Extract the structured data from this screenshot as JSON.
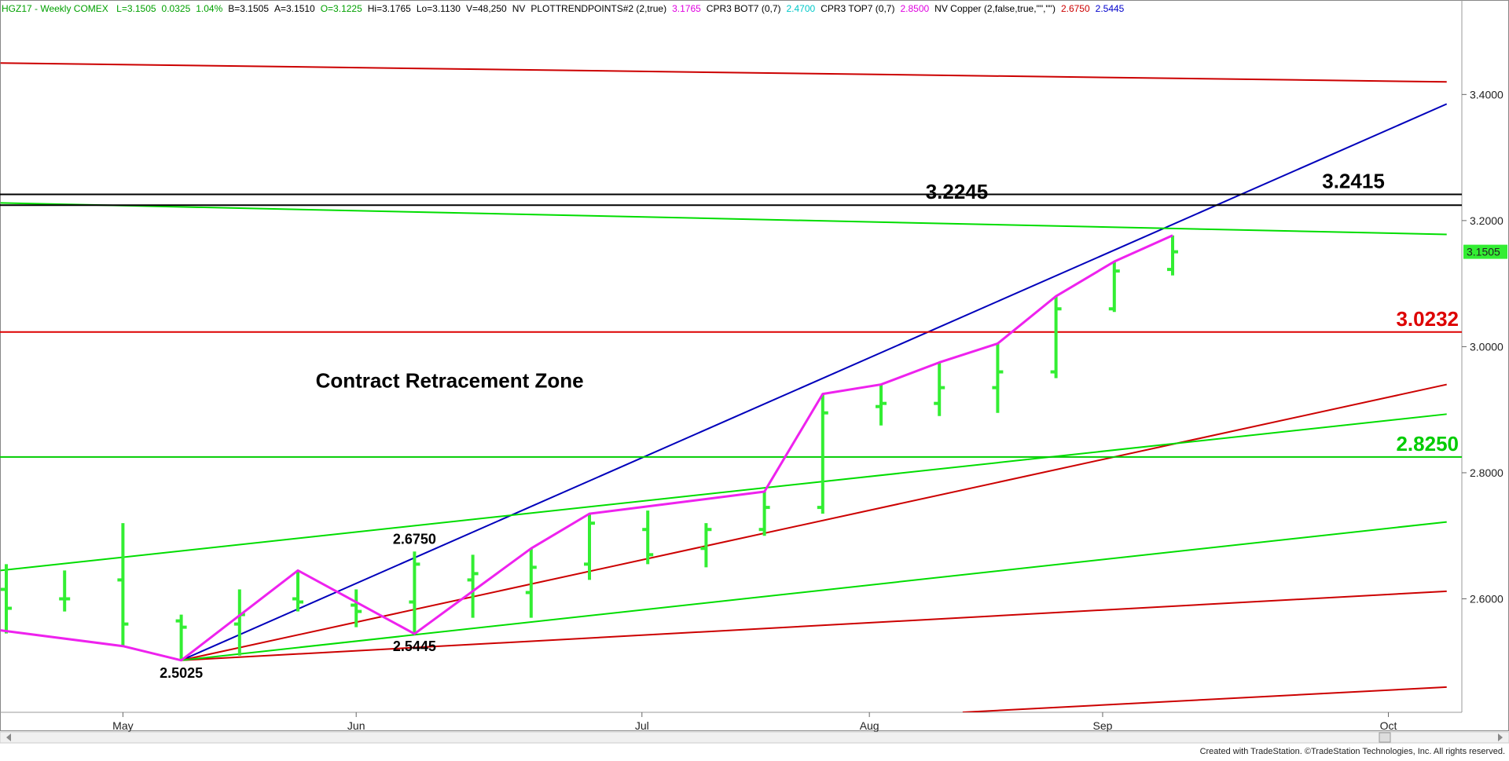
{
  "header": {
    "symbol_text": "HGZ17 - Weekly  COMEX",
    "fields": [
      {
        "text": "L=3.1505",
        "color": "#00a000"
      },
      {
        "text": "0.0325",
        "color": "#00a000"
      },
      {
        "text": "1.04%",
        "color": "#00a000"
      },
      {
        "text": "B=3.1505",
        "color": "#000000"
      },
      {
        "text": "A=3.1510",
        "color": "#000000"
      },
      {
        "text": "O=3.1225",
        "color": "#00a000"
      },
      {
        "text": "Hi=3.1765",
        "color": "#000000"
      },
      {
        "text": "Lo=3.1130",
        "color": "#000000"
      },
      {
        "text": "V=48,250",
        "color": "#000000"
      },
      {
        "text": "NV",
        "color": "#000000"
      },
      {
        "text": "PLOTTRENDPOINTS#2 (2,true)",
        "color": "#000000"
      },
      {
        "text": "3.1765",
        "color": "#e000e0"
      },
      {
        "text": "CPR3 BOT7 (0,7)",
        "color": "#000000"
      },
      {
        "text": "2.4700",
        "color": "#00c8c8"
      },
      {
        "text": "CPR3 TOP7 (0,7)",
        "color": "#000000"
      },
      {
        "text": "2.8500",
        "color": "#e000e0"
      },
      {
        "text": "NV Copper (2,false,true,\"\",\"\")",
        "color": "#000000"
      },
      {
        "text": "2.6750",
        "color": "#cc0000"
      },
      {
        "text": "2.5445",
        "color": "#0000cc"
      }
    ]
  },
  "footer": {
    "credit": "Created with TradeStation. ©TradeStation Technologies, Inc. All rights reserved."
  },
  "colors": {
    "bars": "#33ee33",
    "trend_points": "#ee22ee",
    "blue_line": "#0000bb",
    "red_line": "#cc0000",
    "green_line": "#00dd00",
    "black_line": "#000000",
    "last_price_bg": "#33ee33"
  },
  "chart_data": {
    "type": "bar",
    "subtype": "ohlc",
    "ylim": [
      2.42,
      3.52
    ],
    "yticks": [
      "3.4000",
      "3.2000",
      "3.0000",
      "2.8000",
      "2.6000"
    ],
    "ytick_values": [
      3.4,
      3.2,
      3.0,
      2.8,
      2.6
    ],
    "x_month_labels": [
      {
        "label": "May",
        "x": 2.0
      },
      {
        "label": "Jun",
        "x": 6.0
      },
      {
        "label": "Jul",
        "x": 10.9
      },
      {
        "label": "Aug",
        "x": 14.8
      },
      {
        "label": "Sep",
        "x": 18.8
      },
      {
        "label": "Oct",
        "x": 23.7
      }
    ],
    "x_range": [
      0,
      24.7
    ],
    "bars": [
      {
        "x": 0,
        "open": 2.615,
        "high": 2.655,
        "low": 2.545,
        "close": 2.585
      },
      {
        "x": 1,
        "open": 2.6,
        "high": 2.645,
        "low": 2.58,
        "close": 2.6
      },
      {
        "x": 2,
        "open": 2.63,
        "high": 2.72,
        "low": 2.525,
        "close": 2.56
      },
      {
        "x": 3,
        "open": 2.565,
        "high": 2.575,
        "low": 2.5025,
        "close": 2.555
      },
      {
        "x": 4,
        "open": 2.56,
        "high": 2.615,
        "low": 2.51,
        "close": 2.575
      },
      {
        "x": 5,
        "open": 2.6,
        "high": 2.645,
        "low": 2.58,
        "close": 2.595
      },
      {
        "x": 6,
        "open": 2.59,
        "high": 2.615,
        "low": 2.555,
        "close": 2.58
      },
      {
        "x": 7,
        "open": 2.595,
        "high": 2.675,
        "low": 2.5445,
        "close": 2.655
      },
      {
        "x": 8,
        "open": 2.63,
        "high": 2.67,
        "low": 2.57,
        "close": 2.64
      },
      {
        "x": 9,
        "open": 2.61,
        "high": 2.68,
        "low": 2.57,
        "close": 2.65
      },
      {
        "x": 10,
        "open": 2.655,
        "high": 2.735,
        "low": 2.63,
        "close": 2.72
      },
      {
        "x": 11,
        "open": 2.71,
        "high": 2.74,
        "low": 2.655,
        "close": 2.67
      },
      {
        "x": 12,
        "open": 2.68,
        "high": 2.72,
        "low": 2.65,
        "close": 2.71
      },
      {
        "x": 13,
        "open": 2.71,
        "high": 2.77,
        "low": 2.7,
        "close": 2.745
      },
      {
        "x": 14,
        "open": 2.745,
        "high": 2.925,
        "low": 2.735,
        "close": 2.895
      },
      {
        "x": 15,
        "open": 2.905,
        "high": 2.94,
        "low": 2.875,
        "close": 2.91
      },
      {
        "x": 16,
        "open": 2.91,
        "high": 2.975,
        "low": 2.89,
        "close": 2.935
      },
      {
        "x": 17,
        "open": 2.935,
        "high": 3.005,
        "low": 2.895,
        "close": 2.96
      },
      {
        "x": 18,
        "open": 2.96,
        "high": 3.08,
        "low": 2.95,
        "close": 3.06
      },
      {
        "x": 19,
        "open": 3.06,
        "high": 3.135,
        "low": 3.055,
        "close": 3.12
      },
      {
        "x": 20,
        "open": 3.1225,
        "high": 3.1765,
        "low": 3.113,
        "close": 3.1505
      }
    ],
    "trend_points": [
      {
        "x": -0.1,
        "y": 2.55
      },
      {
        "x": 2,
        "y": 2.525
      },
      {
        "x": 3,
        "y": 2.5025
      },
      {
        "x": 5,
        "y": 2.645
      },
      {
        "x": 7,
        "y": 2.5445
      },
      {
        "x": 9,
        "y": 2.68
      },
      {
        "x": 10,
        "y": 2.735
      },
      {
        "x": 13,
        "y": 2.77
      },
      {
        "x": 14,
        "y": 2.925
      },
      {
        "x": 15,
        "y": 2.94
      },
      {
        "x": 16,
        "y": 2.975
      },
      {
        "x": 17,
        "y": 3.005
      },
      {
        "x": 18,
        "y": 3.08
      },
      {
        "x": 19,
        "y": 3.135
      },
      {
        "x": 20,
        "y": 3.1765
      }
    ],
    "horizontal_levels": [
      {
        "value": 3.2415,
        "label": "3.2415",
        "color": "#000000",
        "label_x": 23.1
      },
      {
        "value": 3.2245,
        "label": "3.2245",
        "color": "#000000",
        "label_x": 16.3
      },
      {
        "value": 3.0232,
        "label": "3.0232",
        "color": "#dd0000",
        "label_x": 24.3
      },
      {
        "value": 2.825,
        "label": "2.8250",
        "color": "#00cc00",
        "label_x": 24.3
      }
    ],
    "trend_lines": [
      {
        "color": "#0000bb",
        "x1": 3,
        "y1": 2.5025,
        "x2": 24.7,
        "y2": 3.385
      },
      {
        "color": "#cc0000",
        "x1": -0.1,
        "y1": 3.45,
        "x2": 24.7,
        "y2": 3.42
      },
      {
        "color": "#cc0000",
        "x1": 3,
        "y1": 2.5025,
        "x2": 24.7,
        "y2": 2.94
      },
      {
        "color": "#cc0000",
        "x1": 3,
        "y1": 2.5025,
        "x2": 24.7,
        "y2": 2.612
      },
      {
        "color": "#cc0000",
        "x1": 16.4,
        "y1": 2.42,
        "x2": 24.7,
        "y2": 2.46
      },
      {
        "color": "#00dd00",
        "x1": -0.1,
        "y1": 3.228,
        "x2": 24.7,
        "y2": 3.178
      },
      {
        "color": "#00dd00",
        "x1": -0.1,
        "y1": 2.645,
        "x2": 24.7,
        "y2": 2.893
      },
      {
        "color": "#00dd00",
        "x1": 3,
        "y1": 2.5025,
        "x2": 24.7,
        "y2": 2.722
      }
    ],
    "pivot_labels": [
      {
        "text": "2.5025",
        "x": 3,
        "y": 2.5025,
        "pos": "below"
      },
      {
        "text": "2.5445",
        "x": 7,
        "y": 2.5445,
        "pos": "below"
      },
      {
        "text": "2.6750",
        "x": 7,
        "y": 2.675,
        "pos": "above"
      }
    ],
    "annotation": {
      "text": "Contract Retracement Zone",
      "x": 9.9,
      "y": 2.935
    },
    "last_price": {
      "label": "3.1505",
      "value": 3.1505
    }
  }
}
